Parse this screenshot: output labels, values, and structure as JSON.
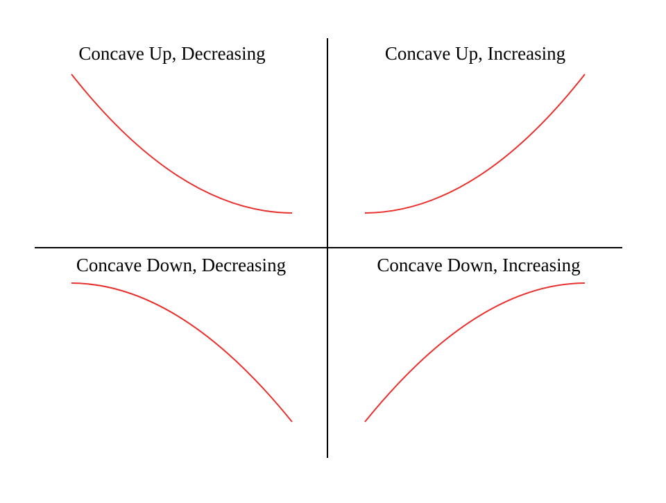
{
  "quadrants": {
    "top_left": {
      "label": "Concave Up, Decreasing",
      "concavity": "up",
      "direction": "decreasing"
    },
    "top_right": {
      "label": "Concave Up, Increasing",
      "concavity": "up",
      "direction": "increasing"
    },
    "bottom_left": {
      "label": "Concave Down, Decreasing",
      "concavity": "down",
      "direction": "decreasing"
    },
    "bottom_right": {
      "label": "Concave Down, Increasing",
      "concavity": "down",
      "direction": "increasing"
    }
  },
  "colors": {
    "curve": "#e8302e",
    "divider": "#000000",
    "text": "#000000",
    "background": "#ffffff"
  }
}
